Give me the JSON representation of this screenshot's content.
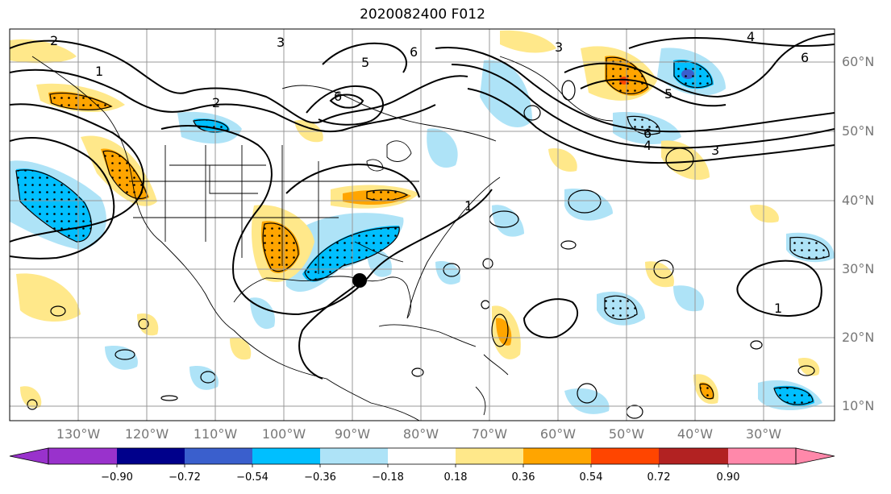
{
  "title": "2020082400 F012",
  "lat_labels": [
    "60°N",
    "50°N",
    "40°N",
    "30°N",
    "20°N",
    "10°N"
  ],
  "lon_labels": [
    "130°W",
    "120°W",
    "110°W",
    "100°W",
    "90°W",
    "80°W",
    "70°W",
    "60°W",
    "50°W",
    "40°W",
    "30°W"
  ],
  "contour_labels": [
    "2",
    "3",
    "5",
    "6",
    "4",
    "1"
  ],
  "colorbar": {
    "ticks": [
      "−0.90",
      "−0.72",
      "−0.54",
      "−0.36",
      "−0.18",
      "0.18",
      "0.36",
      "0.54",
      "0.72",
      "0.90"
    ],
    "colors": [
      "#9932cc",
      "#00008b",
      "#3a5fcd",
      "#00bfff",
      "#aee3f7",
      "#ffffff",
      "#ffe88a",
      "#ffa500",
      "#ff4500",
      "#b22222",
      "#ff88aa"
    ]
  },
  "marker": {
    "label": "",
    "color": "#000000"
  }
}
